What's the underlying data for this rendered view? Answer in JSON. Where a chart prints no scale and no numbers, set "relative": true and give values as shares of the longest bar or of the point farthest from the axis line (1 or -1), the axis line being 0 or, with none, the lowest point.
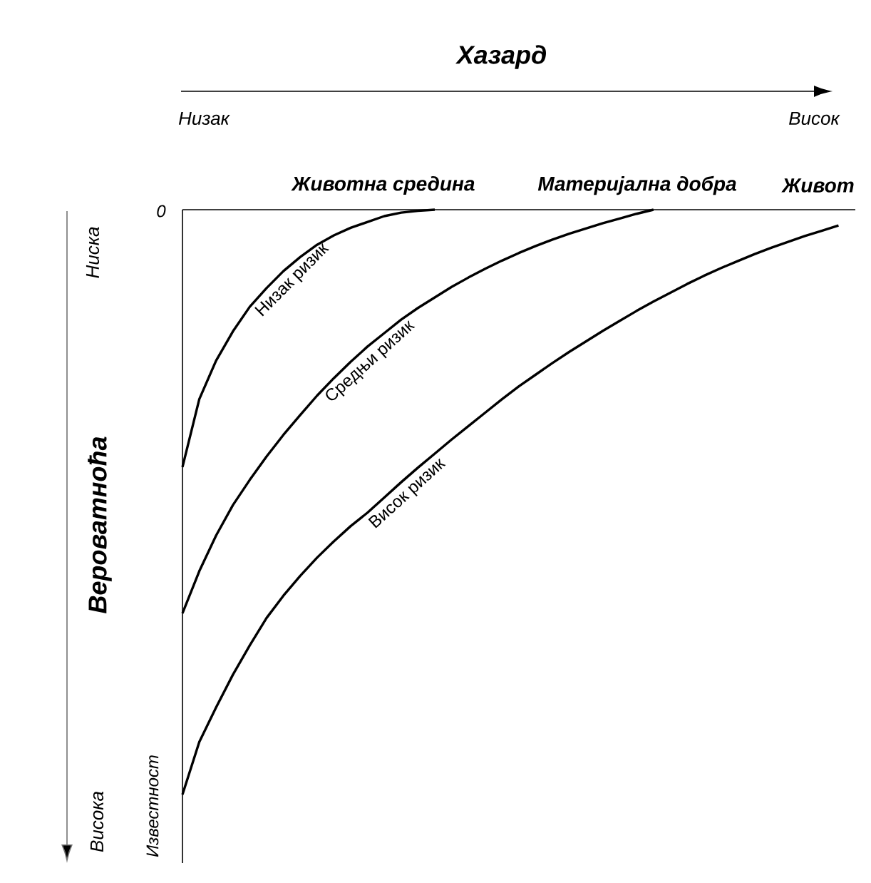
{
  "chart_data": {
    "type": "line",
    "relative": true,
    "title": "Хазард",
    "ylabel": "Вероватноћа",
    "categories": [
      null,
      null,
      null,
      null,
      null,
      null,
      null,
      null,
      null,
      null,
      null,
      null,
      null,
      null,
      null,
      null,
      null,
      null,
      null,
      null,
      null,
      null,
      null,
      null,
      null,
      null,
      null,
      null,
      null,
      null,
      null,
      null,
      null,
      null,
      null,
      null,
      null,
      null,
      null,
      null,
      null
    ],
    "series": [
      {
        "name": "Низак ризик",
        "color": "#000000",
        "values": [
          -0.44,
          -0.324,
          -0.258,
          -0.208,
          -0.166,
          -0.134,
          -0.105,
          -0.081,
          -0.06,
          -0.044,
          -0.031,
          -0.021,
          -0.011,
          -0.005,
          -0.002,
          0,
          null,
          null,
          null,
          null,
          null,
          null,
          null,
          null,
          null,
          null,
          null,
          null,
          null,
          null,
          null,
          null,
          null,
          null,
          null,
          null,
          null,
          null,
          null,
          null,
          null
        ]
      },
      {
        "name": "Средњи ризик",
        "color": "#000000",
        "values": [
          -0.69,
          -0.618,
          -0.557,
          -0.505,
          -0.462,
          -0.422,
          -0.385,
          -0.351,
          -0.318,
          -0.288,
          -0.26,
          -0.234,
          -0.211,
          -0.188,
          -0.168,
          -0.15,
          -0.132,
          -0.116,
          -0.101,
          -0.087,
          -0.074,
          -0.062,
          -0.051,
          -0.041,
          -0.032,
          -0.023,
          -0.015,
          -0.007,
          0,
          null,
          null,
          null,
          null,
          null,
          null,
          null,
          null,
          null,
          null,
          null,
          null
        ]
      },
      {
        "name": "Висок ризик",
        "color": "#000000",
        "values": [
          -1,
          -0.91,
          -0.851,
          -0.795,
          -0.745,
          -0.698,
          -0.66,
          -0.626,
          -0.595,
          -0.567,
          -0.541,
          -0.518,
          -0.492,
          -0.466,
          -0.441,
          -0.417,
          -0.393,
          -0.37,
          -0.347,
          -0.324,
          -0.302,
          -0.282,
          -0.262,
          -0.243,
          -0.225,
          -0.207,
          -0.19,
          -0.173,
          -0.157,
          -0.142,
          -0.127,
          -0.113,
          -0.1,
          -0.088,
          -0.076,
          -0.065,
          -0.055,
          -0.045,
          -0.036,
          -0.027,
          null
        ]
      }
    ],
    "annotations": [
      "Животна средина",
      "Материјална добра",
      "Живот",
      "Низак",
      "Висок",
      "0",
      "Ниска",
      "Висока",
      "Известност"
    ],
    "marker": "none",
    "line_style": "solid"
  }
}
